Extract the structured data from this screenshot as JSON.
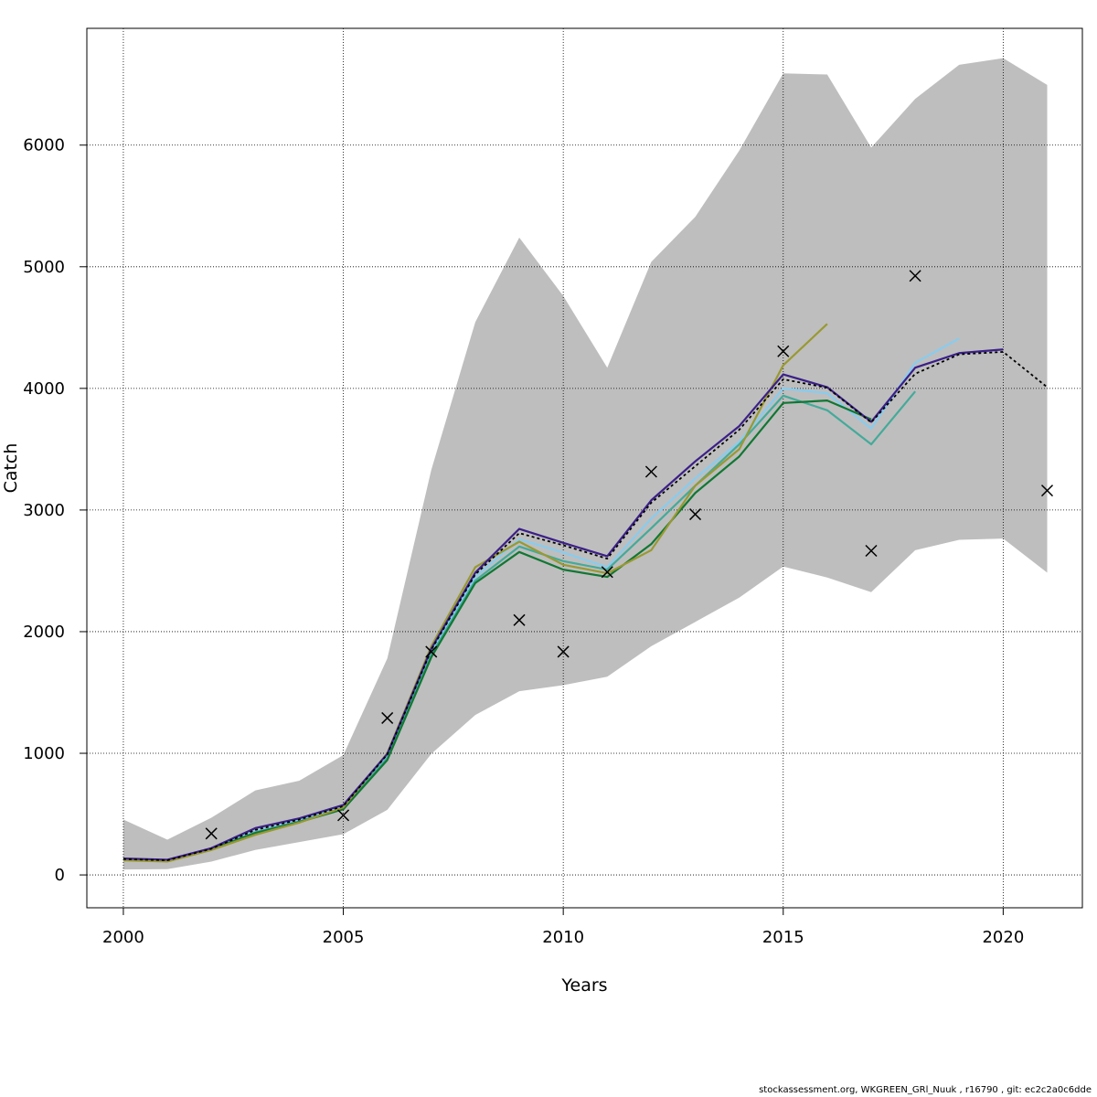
{
  "chart_data": {
    "type": "line",
    "title": "",
    "xlabel": "Years",
    "ylabel": "Catch",
    "xlim": [
      1999.17,
      2021.8
    ],
    "ylim": [
      -270,
      6960
    ],
    "x_ticks": [
      2000,
      2005,
      2010,
      2015,
      2020
    ],
    "x_tick_labels": [
      "2000",
      "2005",
      "2010",
      "2015",
      "2020"
    ],
    "y_ticks": [
      0,
      1000,
      2000,
      3000,
      4000,
      5000,
      6000
    ],
    "y_tick_labels": [
      "0",
      "1000",
      "2000",
      "3000",
      "4000",
      "5000",
      "6000"
    ],
    "grid": true,
    "confidence_band": {
      "color": "#bebebe",
      "x": [
        2000,
        2001,
        2002,
        2003,
        2004,
        2005,
        2006,
        2007,
        2008,
        2009,
        2010,
        2011,
        2012,
        2013,
        2014,
        2015,
        2016,
        2017,
        2018,
        2019,
        2020,
        2021
      ],
      "upper": [
        455,
        290,
        470,
        695,
        775,
        985,
        1780,
        3330,
        4545,
        5240,
        4760,
        4170,
        5040,
        5410,
        5955,
        6590,
        6580,
        5980,
        6380,
        6660,
        6715,
        6495
      ],
      "lower": [
        45,
        48,
        110,
        205,
        270,
        335,
        535,
        995,
        1315,
        1510,
        1560,
        1630,
        1880,
        2080,
        2280,
        2535,
        2445,
        2325,
        2670,
        2755,
        2765,
        2485
      ]
    },
    "observations": {
      "marker": "x",
      "x": [
        2002,
        2005,
        2006,
        2007,
        2009,
        2010,
        2011,
        2012,
        2013,
        2015,
        2017,
        2018,
        2021
      ],
      "y": [
        340,
        490,
        1290,
        1835,
        2095,
        1835,
        2490,
        3315,
        2965,
        4305,
        2665,
        4925,
        3160
      ]
    },
    "series": [
      {
        "color": "#000000",
        "dash": true,
        "x": [
          2000,
          2001,
          2002,
          2003,
          2004,
          2005,
          2006,
          2007,
          2008,
          2009,
          2010,
          2011,
          2012,
          2013,
          2014,
          2015,
          2016,
          2017,
          2018,
          2019,
          2020,
          2021
        ],
        "y": [
          130,
          120,
          215,
          370,
          455,
          565,
          990,
          1850,
          2470,
          2810,
          2710,
          2600,
          3060,
          3360,
          3660,
          4075,
          4005,
          3720,
          4120,
          4280,
          4300,
          4010
        ]
      },
      {
        "color": "#3b1f88",
        "x": [
          2000,
          2001,
          2002,
          2003,
          2004,
          2005,
          2006,
          2007,
          2008,
          2009,
          2010,
          2011,
          2012,
          2013,
          2014,
          2015,
          2016,
          2017,
          2018,
          2019,
          2020
        ],
        "y": [
          135,
          125,
          220,
          385,
          465,
          575,
          995,
          1860,
          2485,
          2845,
          2730,
          2620,
          3080,
          3400,
          3690,
          4115,
          4010,
          3725,
          4170,
          4290,
          4320
        ]
      },
      {
        "color": "#88ccee",
        "x": [
          2000,
          2001,
          2002,
          2003,
          2004,
          2005,
          2006,
          2007,
          2008,
          2009,
          2010,
          2011,
          2012,
          2013,
          2014,
          2015,
          2016,
          2017,
          2018,
          2019
        ],
        "y": [
          130,
          120,
          215,
          360,
          450,
          560,
          975,
          1830,
          2450,
          2760,
          2650,
          2530,
          2930,
          3260,
          3560,
          4000,
          3960,
          3670,
          4210,
          4410
        ]
      },
      {
        "color": "#44aa99",
        "x": [
          2000,
          2001,
          2002,
          2003,
          2004,
          2005,
          2006,
          2007,
          2008,
          2009,
          2010,
          2011,
          2012,
          2013,
          2014,
          2015,
          2016,
          2017,
          2018
        ],
        "y": [
          128,
          118,
          212,
          350,
          440,
          550,
          960,
          1810,
          2420,
          2700,
          2580,
          2510,
          2850,
          3200,
          3540,
          3940,
          3820,
          3540,
          3975
        ]
      },
      {
        "color": "#117733",
        "x": [
          2000,
          2001,
          2002,
          2003,
          2004,
          2005,
          2006,
          2007,
          2008,
          2009,
          2010,
          2011,
          2012,
          2013,
          2014,
          2015,
          2016,
          2017
        ],
        "y": [
          125,
          115,
          210,
          345,
          435,
          540,
          945,
          1790,
          2400,
          2655,
          2510,
          2450,
          2720,
          3140,
          3440,
          3880,
          3900,
          3745
        ]
      },
      {
        "color": "#999933",
        "x": [
          2000,
          2001,
          2002,
          2003,
          2004,
          2005,
          2006,
          2007,
          2008,
          2009,
          2010,
          2011,
          2012,
          2013,
          2014,
          2015,
          2016
        ],
        "y": [
          120,
          110,
          205,
          330,
          430,
          555,
          1000,
          1880,
          2530,
          2740,
          2550,
          2480,
          2670,
          3200,
          3500,
          4190,
          4530
        ]
      }
    ]
  },
  "footer": "stockassessment.org, WKGREEN_GRl_Nuuk , r16790 , git: ec2c2a0c6dde"
}
